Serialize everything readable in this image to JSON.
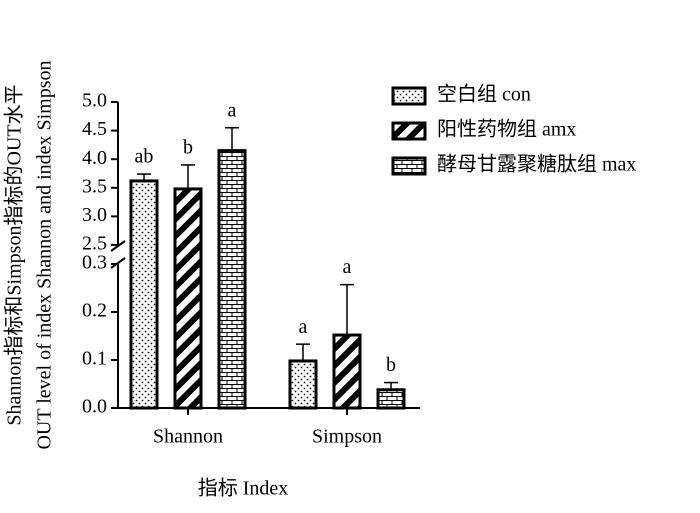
{
  "chart_data": {
    "type": "bar",
    "ylabel": [
      "Shannon指标和Simpson指标的OUT水平",
      "OUT level of index Shannon and index Simpson"
    ],
    "xlabel": "指标  Index",
    "categories": [
      "Shannon",
      "Simpson"
    ],
    "y_segments": [
      {
        "ylim": [
          0,
          0.3
        ],
        "yticks": [
          {
            "value": 0,
            "label": "0.0"
          },
          0.1,
          0.2,
          0.3
        ]
      },
      {
        "ylim": [
          2.5,
          5.0
        ],
        "yticks": [
          2.5,
          {
            "value": 3,
            "label": "3.0"
          },
          3.5,
          {
            "value": 4,
            "label": "4.0"
          },
          4.5,
          {
            "value": 5,
            "label": "5.0"
          }
        ]
      }
    ],
    "series": [
      {
        "name": "空白组  con",
        "pattern": "dots",
        "values": [
          3.62,
          0.098
        ],
        "errors": [
          0.12,
          0.035
        ],
        "letters": [
          "ab",
          "a"
        ]
      },
      {
        "name": "阳性药物组  amx",
        "pattern": "stripes",
        "values": [
          3.48,
          0.152
        ],
        "errors": [
          0.42,
          0.105
        ],
        "letters": [
          "b",
          "a"
        ]
      },
      {
        "name": "酵母甘露聚糖肽组 max",
        "pattern": "bricks",
        "values": [
          4.15,
          0.038
        ],
        "errors": [
          0.4,
          0.015
        ],
        "letters": [
          "a",
          "b"
        ]
      }
    ]
  }
}
